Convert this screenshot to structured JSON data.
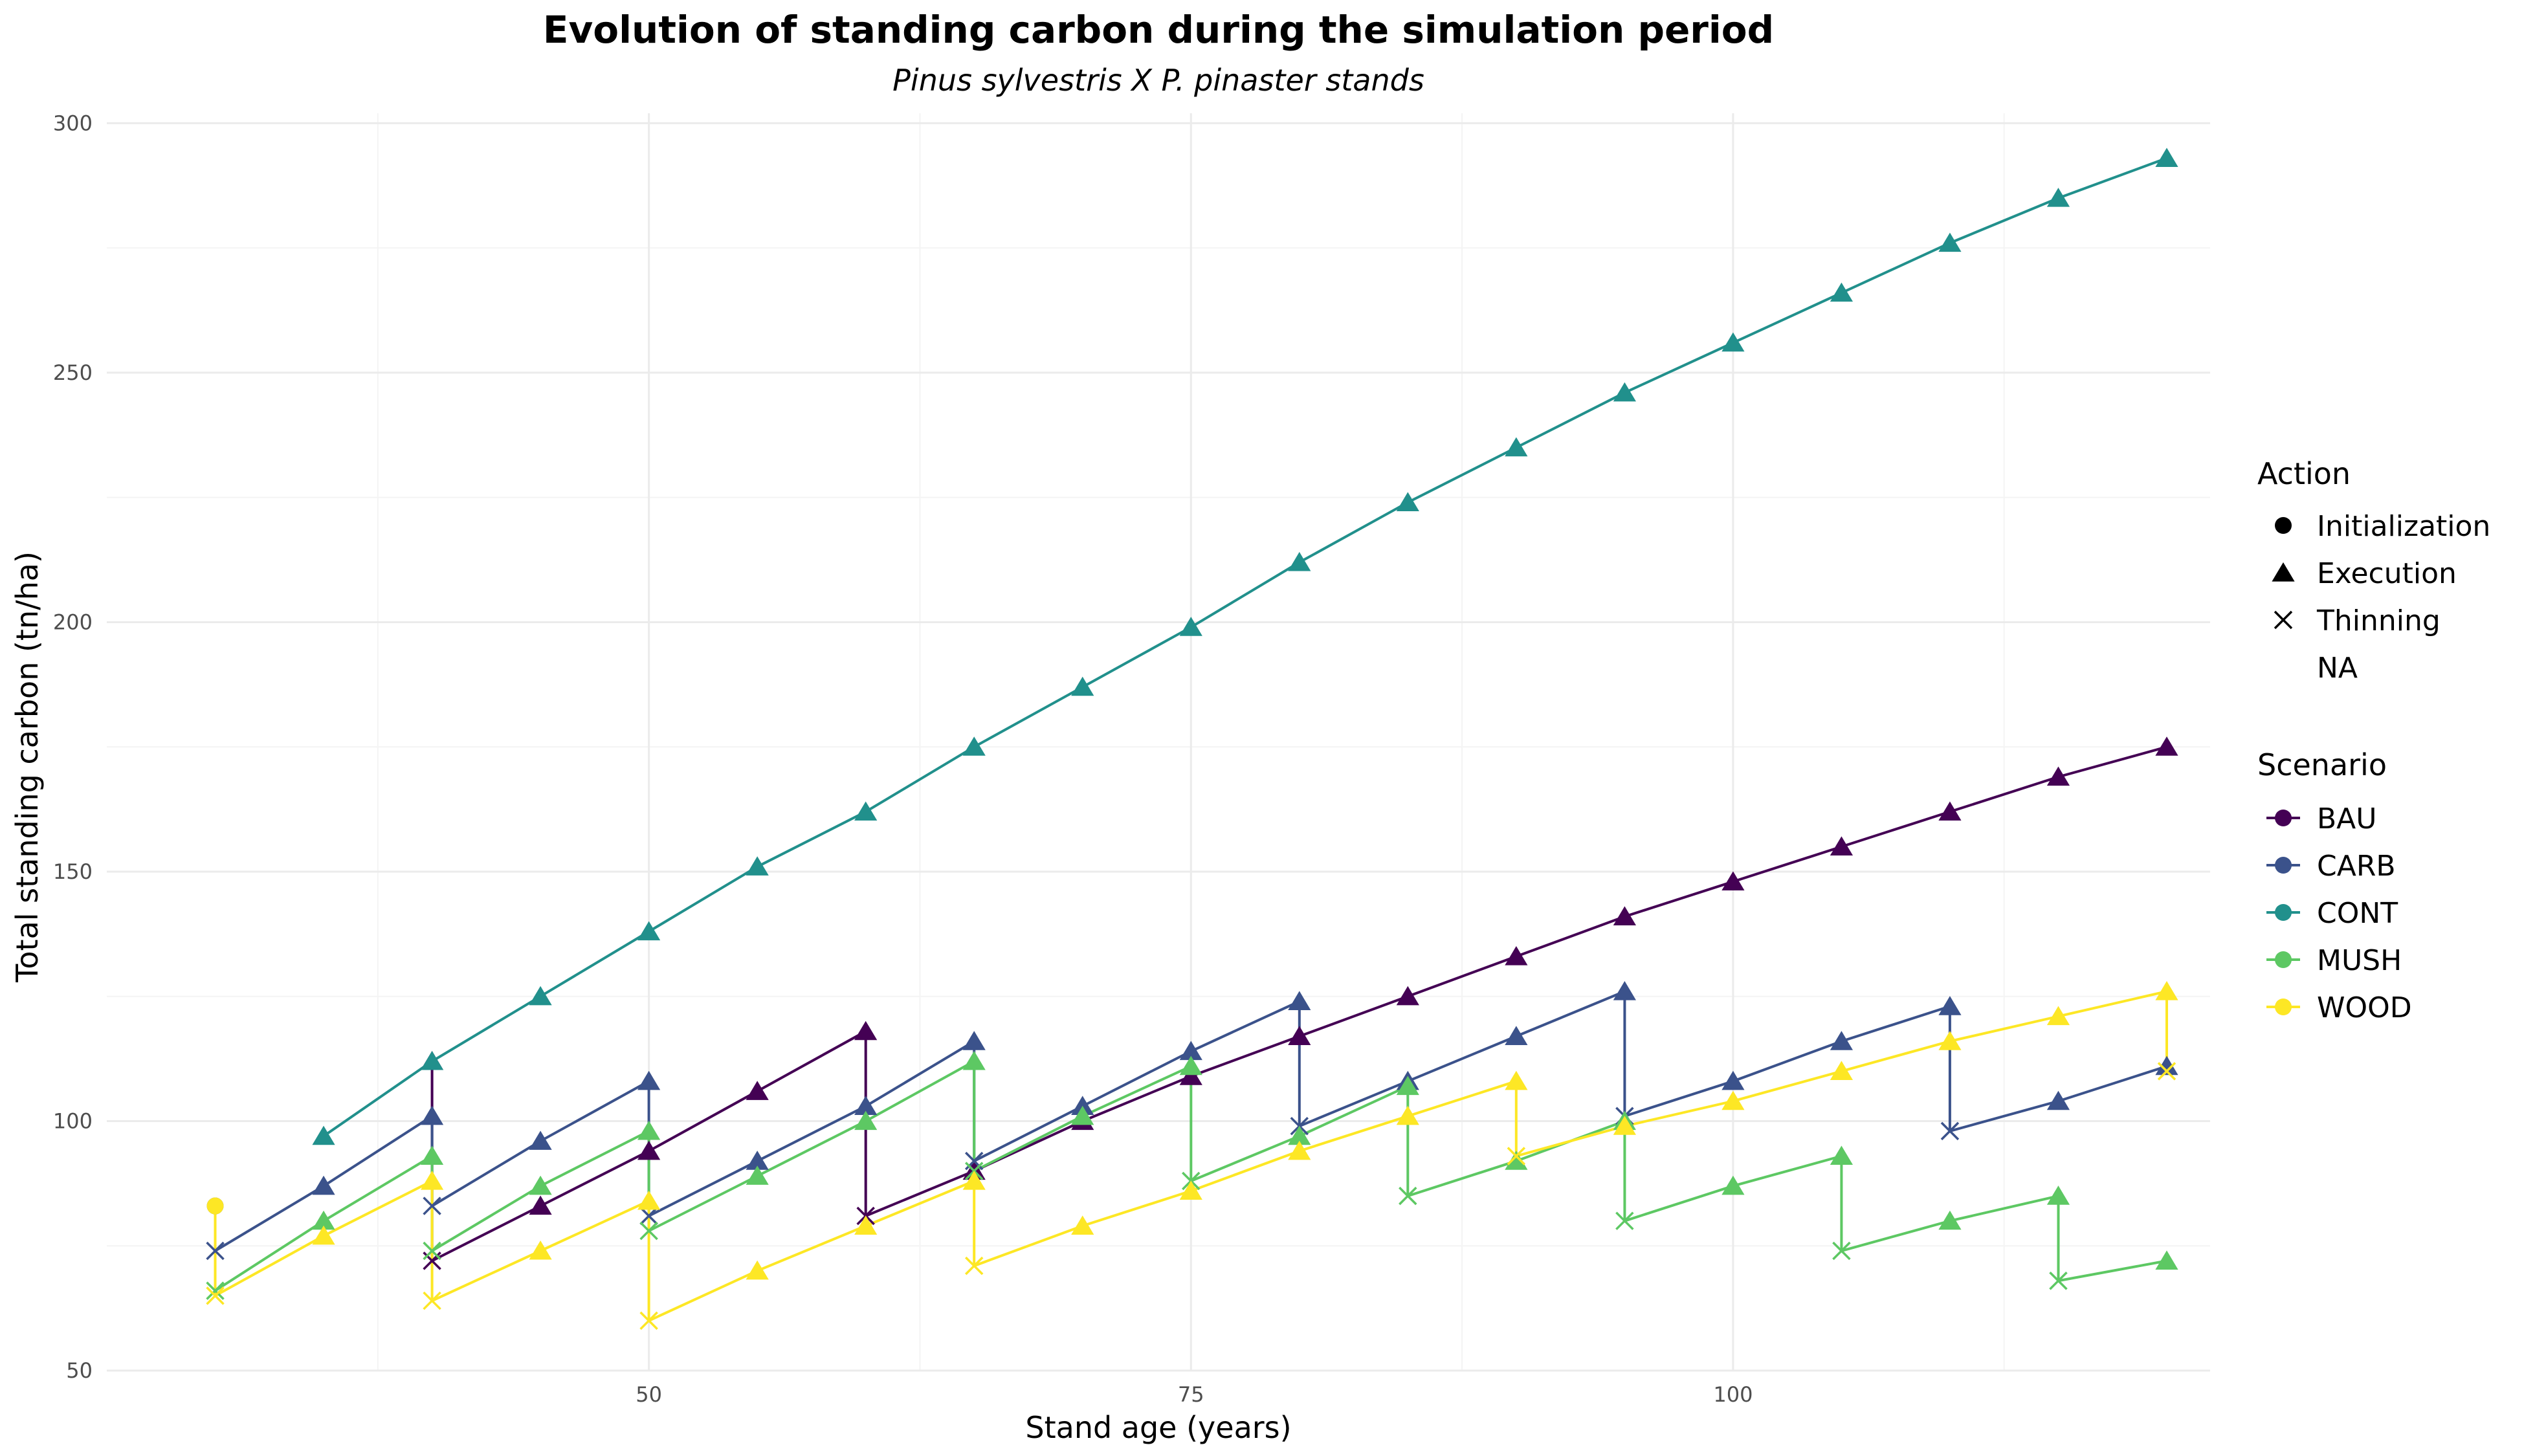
{
  "chart_data": {
    "type": "line",
    "title": "Evolution of standing carbon during the simulation period",
    "subtitle": "Pinus sylvestris X P. pinaster stands",
    "xlabel": "Stand age (years)",
    "ylabel": "Total standing carbon (tn/ha)",
    "xlim": [
      25,
      122
    ],
    "ylim": [
      50,
      302
    ],
    "x_ticks": [
      50,
      75,
      100
    ],
    "y_ticks": [
      50,
      100,
      150,
      200,
      250,
      300
    ],
    "grid": true,
    "legend_position": "right",
    "action_legend": {
      "title": "Action",
      "items": [
        {
          "label": "Initialization",
          "shape": "circle"
        },
        {
          "label": "Execution",
          "shape": "triangle"
        },
        {
          "label": "Thinning",
          "shape": "cross"
        },
        {
          "label": "NA",
          "shape": "none"
        }
      ]
    },
    "scenario_legend": {
      "title": "Scenario",
      "items": [
        {
          "label": "BAU",
          "color": "#440154"
        },
        {
          "label": "CARB",
          "color": "#3b528b"
        },
        {
          "label": "CONT",
          "color": "#21908c"
        },
        {
          "label": "MUSH",
          "color": "#5dc863"
        },
        {
          "label": "WOOD",
          "color": "#fde725"
        }
      ]
    },
    "series": [
      {
        "name": "BAU",
        "color": "#440154",
        "points": [
          {
            "x": 40,
            "y": 112,
            "action": "Execution"
          },
          {
            "x": 40,
            "y": 72,
            "action": "Thinning"
          },
          {
            "x": 45,
            "y": 83,
            "action": "Execution"
          },
          {
            "x": 50,
            "y": 94,
            "action": "Execution"
          },
          {
            "x": 55,
            "y": 106,
            "action": "Execution"
          },
          {
            "x": 60,
            "y": 118,
            "action": "Execution"
          },
          {
            "x": 60,
            "y": 81,
            "action": "Thinning"
          },
          {
            "x": 65,
            "y": 90,
            "action": "Execution"
          },
          {
            "x": 70,
            "y": 100,
            "action": "Execution"
          },
          {
            "x": 75,
            "y": 109,
            "action": "Execution"
          },
          {
            "x": 80,
            "y": 117,
            "action": "Execution"
          },
          {
            "x": 85,
            "y": 125,
            "action": "Execution"
          },
          {
            "x": 90,
            "y": 133,
            "action": "Execution"
          },
          {
            "x": 95,
            "y": 141,
            "action": "Execution"
          },
          {
            "x": 100,
            "y": 148,
            "action": "Execution"
          },
          {
            "x": 105,
            "y": 155,
            "action": "Execution"
          },
          {
            "x": 110,
            "y": 162,
            "action": "Execution"
          },
          {
            "x": 115,
            "y": 169,
            "action": "Execution"
          },
          {
            "x": 120,
            "y": 175,
            "action": "Execution"
          }
        ]
      },
      {
        "name": "CARB",
        "color": "#3b528b",
        "points": [
          {
            "x": 30,
            "y": 83,
            "action": "Initialization"
          },
          {
            "x": 30,
            "y": 74,
            "action": "Thinning"
          },
          {
            "x": 35,
            "y": 87,
            "action": "Execution"
          },
          {
            "x": 40,
            "y": 101,
            "action": "Execution"
          },
          {
            "x": 40,
            "y": 83,
            "action": "Thinning"
          },
          {
            "x": 45,
            "y": 96,
            "action": "Execution"
          },
          {
            "x": 50,
            "y": 108,
            "action": "Execution"
          },
          {
            "x": 50,
            "y": 81,
            "action": "Thinning"
          },
          {
            "x": 55,
            "y": 92,
            "action": "Execution"
          },
          {
            "x": 60,
            "y": 103,
            "action": "Execution"
          },
          {
            "x": 65,
            "y": 116,
            "action": "Execution"
          },
          {
            "x": 65,
            "y": 92,
            "action": "Thinning"
          },
          {
            "x": 70,
            "y": 103,
            "action": "Execution"
          },
          {
            "x": 75,
            "y": 114,
            "action": "Execution"
          },
          {
            "x": 80,
            "y": 124,
            "action": "Execution"
          },
          {
            "x": 80,
            "y": 99,
            "action": "Thinning"
          },
          {
            "x": 85,
            "y": 108,
            "action": "Execution"
          },
          {
            "x": 90,
            "y": 117,
            "action": "Execution"
          },
          {
            "x": 95,
            "y": 126,
            "action": "Execution"
          },
          {
            "x": 95,
            "y": 101,
            "action": "Thinning"
          },
          {
            "x": 100,
            "y": 108,
            "action": "Execution"
          },
          {
            "x": 105,
            "y": 116,
            "action": "Execution"
          },
          {
            "x": 110,
            "y": 123,
            "action": "Execution"
          },
          {
            "x": 110,
            "y": 98,
            "action": "Thinning"
          },
          {
            "x": 115,
            "y": 104,
            "action": "Execution"
          },
          {
            "x": 120,
            "y": 111,
            "action": "Execution"
          }
        ]
      },
      {
        "name": "CONT",
        "color": "#21908c",
        "points": [
          {
            "x": 35,
            "y": 97,
            "action": "Execution"
          },
          {
            "x": 40,
            "y": 112,
            "action": "Execution"
          },
          {
            "x": 45,
            "y": 125,
            "action": "Execution"
          },
          {
            "x": 50,
            "y": 138,
            "action": "Execution"
          },
          {
            "x": 55,
            "y": 151,
            "action": "Execution"
          },
          {
            "x": 60,
            "y": 162,
            "action": "Execution"
          },
          {
            "x": 65,
            "y": 175,
            "action": "Execution"
          },
          {
            "x": 70,
            "y": 187,
            "action": "Execution"
          },
          {
            "x": 75,
            "y": 199,
            "action": "Execution"
          },
          {
            "x": 80,
            "y": 212,
            "action": "Execution"
          },
          {
            "x": 85,
            "y": 224,
            "action": "Execution"
          },
          {
            "x": 90,
            "y": 235,
            "action": "Execution"
          },
          {
            "x": 95,
            "y": 246,
            "action": "Execution"
          },
          {
            "x": 100,
            "y": 256,
            "action": "Execution"
          },
          {
            "x": 105,
            "y": 266,
            "action": "Execution"
          },
          {
            "x": 110,
            "y": 276,
            "action": "Execution"
          },
          {
            "x": 115,
            "y": 285,
            "action": "Execution"
          },
          {
            "x": 120,
            "y": 293,
            "action": "Execution"
          }
        ]
      },
      {
        "name": "MUSH",
        "color": "#5dc863",
        "points": [
          {
            "x": 30,
            "y": 66,
            "action": "Thinning"
          },
          {
            "x": 35,
            "y": 80,
            "action": "Execution"
          },
          {
            "x": 40,
            "y": 93,
            "action": "Execution"
          },
          {
            "x": 40,
            "y": 74,
            "action": "Thinning"
          },
          {
            "x": 45,
            "y": 87,
            "action": "Execution"
          },
          {
            "x": 50,
            "y": 98,
            "action": "Execution"
          },
          {
            "x": 50,
            "y": 78,
            "action": "Thinning"
          },
          {
            "x": 55,
            "y": 89,
            "action": "Execution"
          },
          {
            "x": 60,
            "y": 100,
            "action": "Execution"
          },
          {
            "x": 65,
            "y": 112,
            "action": "Execution"
          },
          {
            "x": 65,
            "y": 90,
            "action": "Thinning"
          },
          {
            "x": 70,
            "y": 101,
            "action": "Execution"
          },
          {
            "x": 75,
            "y": 111,
            "action": "Execution"
          },
          {
            "x": 75,
            "y": 88,
            "action": "Thinning"
          },
          {
            "x": 80,
            "y": 97,
            "action": "Execution"
          },
          {
            "x": 85,
            "y": 107,
            "action": "Execution"
          },
          {
            "x": 85,
            "y": 85,
            "action": "Thinning"
          },
          {
            "x": 90,
            "y": 92,
            "action": "Execution"
          },
          {
            "x": 95,
            "y": 100,
            "action": "Execution"
          },
          {
            "x": 95,
            "y": 80,
            "action": "Thinning"
          },
          {
            "x": 100,
            "y": 87,
            "action": "Execution"
          },
          {
            "x": 105,
            "y": 93,
            "action": "Execution"
          },
          {
            "x": 105,
            "y": 74,
            "action": "Thinning"
          },
          {
            "x": 110,
            "y": 80,
            "action": "Execution"
          },
          {
            "x": 115,
            "y": 85,
            "action": "Execution"
          },
          {
            "x": 115,
            "y": 68,
            "action": "Thinning"
          },
          {
            "x": 120,
            "y": 72,
            "action": "Execution"
          }
        ]
      },
      {
        "name": "WOOD",
        "color": "#fde725",
        "points": [
          {
            "x": 30,
            "y": 83,
            "action": "Initialization"
          },
          {
            "x": 30,
            "y": 65,
            "action": "Thinning"
          },
          {
            "x": 35,
            "y": 77,
            "action": "Execution"
          },
          {
            "x": 40,
            "y": 88,
            "action": "Execution"
          },
          {
            "x": 40,
            "y": 64,
            "action": "Thinning"
          },
          {
            "x": 45,
            "y": 74,
            "action": "Execution"
          },
          {
            "x": 50,
            "y": 84,
            "action": "Execution"
          },
          {
            "x": 50,
            "y": 60,
            "action": "Thinning"
          },
          {
            "x": 55,
            "y": 70,
            "action": "Execution"
          },
          {
            "x": 60,
            "y": 79,
            "action": "Execution"
          },
          {
            "x": 65,
            "y": 88,
            "action": "Execution"
          },
          {
            "x": 65,
            "y": 71,
            "action": "Thinning"
          },
          {
            "x": 70,
            "y": 79,
            "action": "Execution"
          },
          {
            "x": 75,
            "y": 86,
            "action": "Execution"
          },
          {
            "x": 80,
            "y": 94,
            "action": "Execution"
          },
          {
            "x": 85,
            "y": 101,
            "action": "Execution"
          },
          {
            "x": 90,
            "y": 108,
            "action": "Execution"
          },
          {
            "x": 90,
            "y": 93,
            "action": "Thinning"
          },
          {
            "x": 95,
            "y": 99,
            "action": "Execution"
          },
          {
            "x": 100,
            "y": 104,
            "action": "Execution"
          },
          {
            "x": 105,
            "y": 110,
            "action": "Execution"
          },
          {
            "x": 110,
            "y": 116,
            "action": "Execution"
          },
          {
            "x": 115,
            "y": 121,
            "action": "Execution"
          },
          {
            "x": 120,
            "y": 126,
            "action": "Execution"
          },
          {
            "x": 120,
            "y": 110,
            "action": "Thinning"
          }
        ]
      }
    ]
  }
}
